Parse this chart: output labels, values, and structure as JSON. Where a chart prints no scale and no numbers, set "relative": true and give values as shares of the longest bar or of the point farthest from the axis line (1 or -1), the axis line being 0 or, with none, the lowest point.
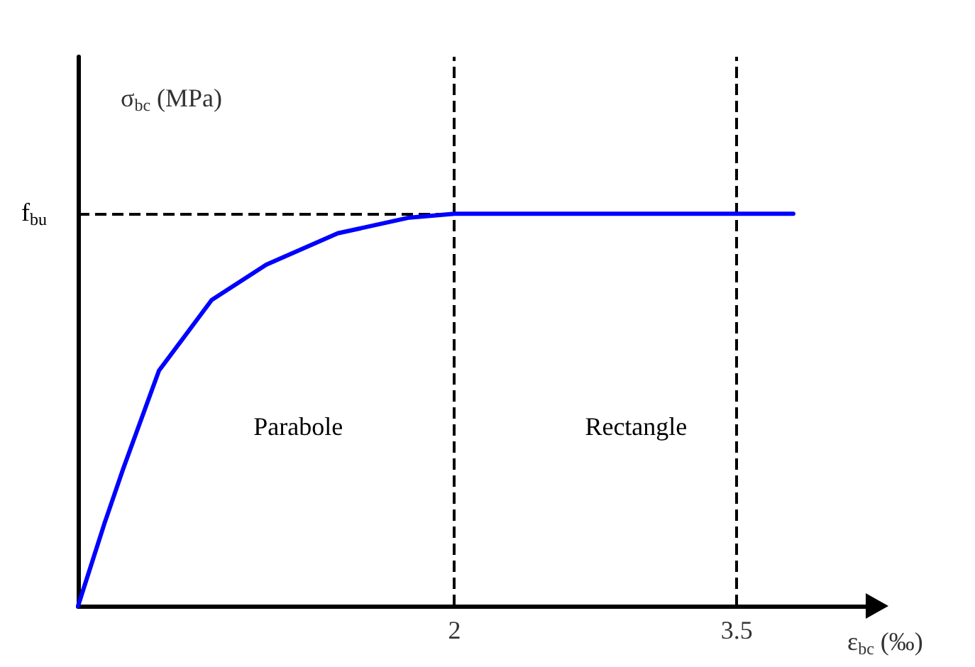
{
  "chart_data": {
    "type": "line",
    "relative": true,
    "xlabel": "ε$_{bc}$ (‰)",
    "ylabel": "σ$_{bc}$ (MPa)",
    "xlim": [
      0,
      4.2
    ],
    "xticks": [
      2,
      3.5
    ],
    "series": [
      {
        "color": "#0000ff",
        "x": [
          0,
          0.14,
          0.24,
          0.43,
          0.71,
          1.0,
          1.38,
          1.76,
          2,
          3.8
        ],
        "values": [
          0,
          0.21,
          0.35,
          0.6,
          0.78,
          0.87,
          0.95,
          0.99,
          1,
          1
        ]
      }
    ],
    "ref_lines": [
      {
        "axis": "y",
        "value": 1,
        "label": "f$_{bu}$",
        "line_style": "dashed",
        "color": "#000000"
      },
      {
        "axis": "x",
        "value": 2,
        "line_style": "dashed",
        "color": "#000000"
      },
      {
        "axis": "x",
        "value": 3.5,
        "line_style": "dashed",
        "color": "#000000"
      }
    ],
    "annotations": [
      "Parabole",
      "Rectangle"
    ],
    "grid": false,
    "marker": "none",
    "line_style": "solid"
  }
}
